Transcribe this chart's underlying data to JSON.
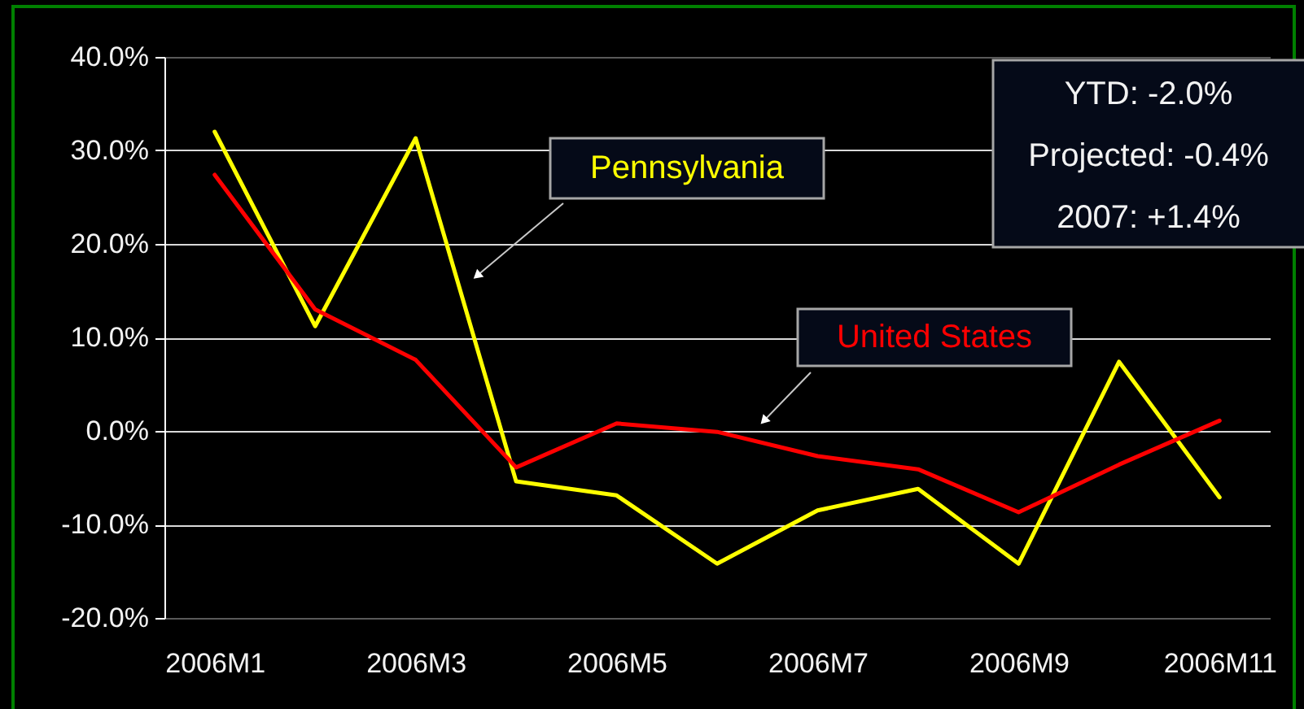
{
  "chart_data": {
    "type": "line",
    "categories": [
      "2006M1",
      null,
      "2006M3",
      null,
      "2006M5",
      null,
      "2006M7",
      null,
      "2006M9",
      null,
      "2006M11"
    ],
    "series": [
      {
        "name": "Pennsylvania",
        "color": "#ffff00",
        "values": [
          32.0,
          11.2,
          31.3,
          -5.4,
          -6.9,
          -14.2,
          -8.5,
          -6.2,
          -14.2,
          7.4,
          -7.1
        ]
      },
      {
        "name": "United States",
        "color": "#ff0000",
        "values": [
          27.4,
          13.0,
          7.6,
          -3.9,
          0.8,
          -0.1,
          -2.7,
          -4.1,
          -8.7,
          -3.6,
          1.1
        ]
      }
    ],
    "ylim": [
      -20,
      40
    ],
    "yticks": [
      {
        "value": -20,
        "label": "-20.0%"
      },
      {
        "value": -10,
        "label": "-10.0%"
      },
      {
        "value": 0,
        "label": "0.0%"
      },
      {
        "value": 10,
        "label": "10.0%"
      },
      {
        "value": 20,
        "label": "20.0%"
      },
      {
        "value": 30,
        "label": "30.0%"
      },
      {
        "value": 40,
        "label": "40.0%"
      }
    ],
    "grid": "y",
    "line_style": "solid",
    "annotations": [
      "YTD: -2.0%",
      "Projected: -0.4%",
      "2007: +1.4%"
    ]
  }
}
